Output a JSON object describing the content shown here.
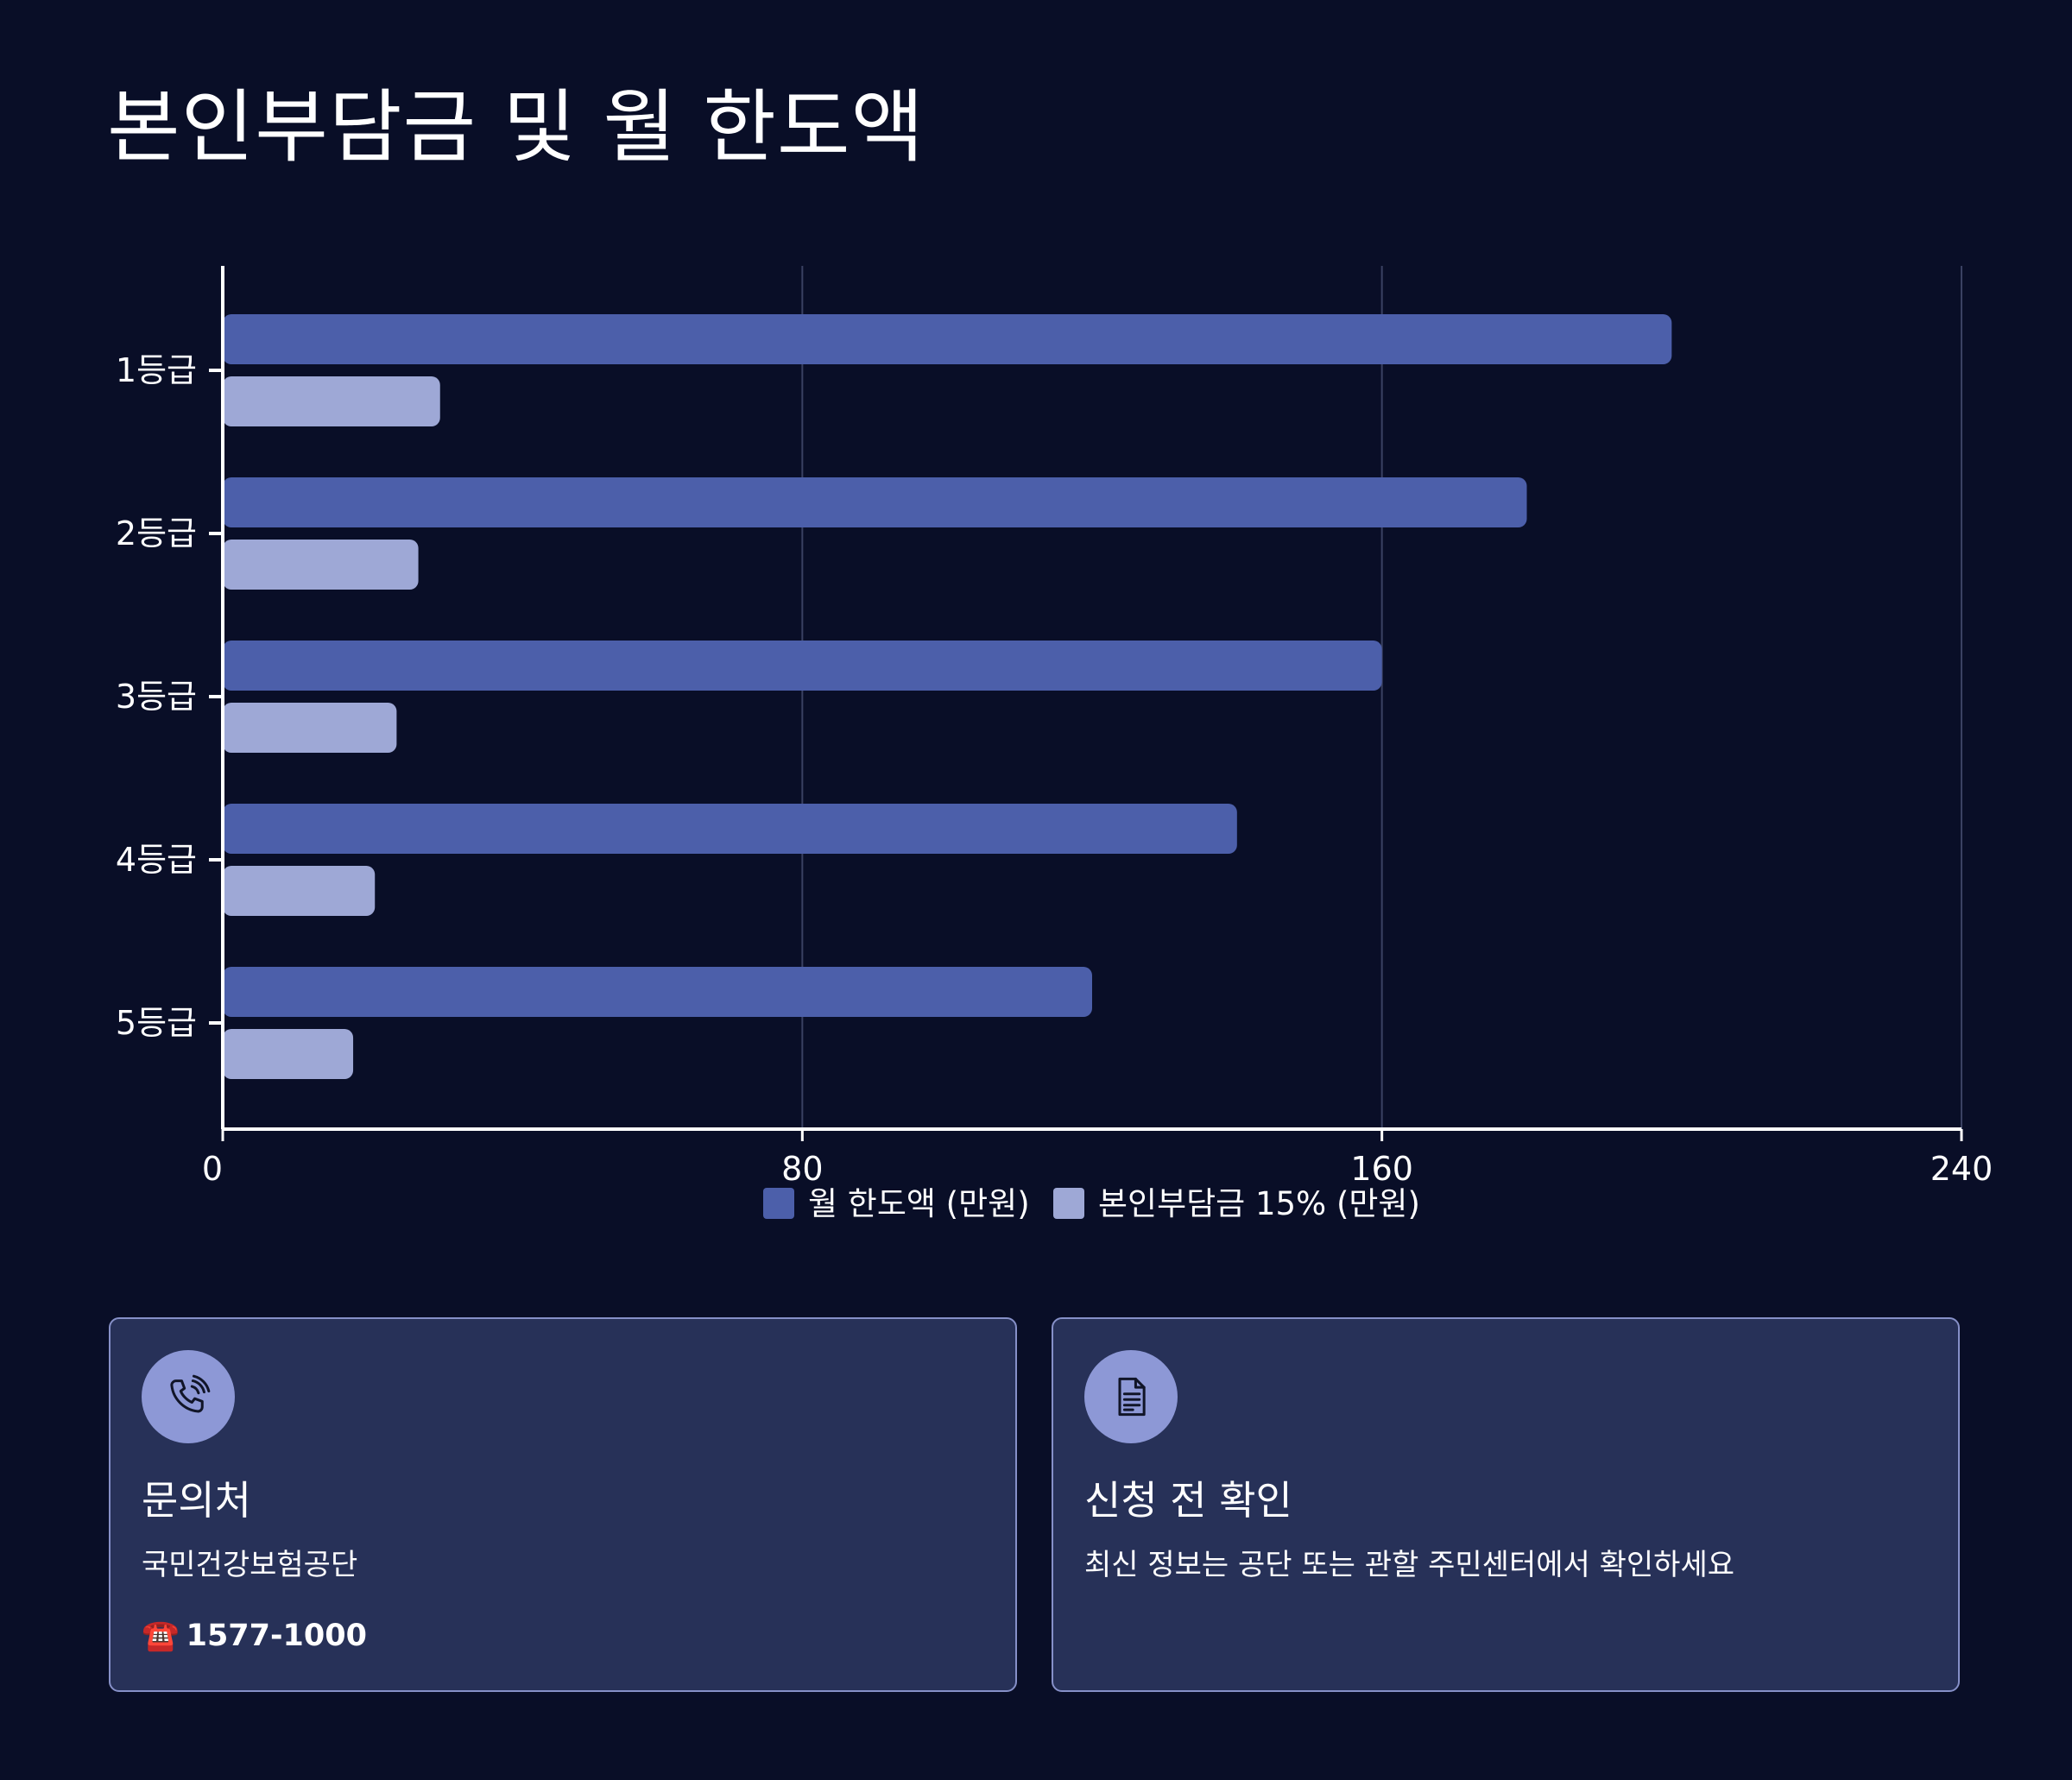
{
  "title": "본인부담금 및 월 한도액",
  "chart_data": {
    "type": "bar",
    "orientation": "horizontal",
    "categories": [
      "1등급",
      "2등급",
      "3등급",
      "4등급",
      "5등급"
    ],
    "series": [
      {
        "name": "월 한도액 (만원)",
        "values": [
          200,
          180,
          160,
          140,
          120
        ],
        "color": "#4c5faa"
      },
      {
        "name": "본인부담금 15% (만원)",
        "values": [
          30,
          27,
          24,
          21,
          18
        ],
        "color": "#9ea8d6"
      }
    ],
    "xlim": [
      0,
      240
    ],
    "xticks": [
      "0",
      "80",
      "160",
      "240"
    ],
    "grid": true,
    "legend_position": "bottom"
  },
  "cards": [
    {
      "icon": "phone-icon",
      "title": "문의처",
      "text": "국민건강보험공단",
      "phone_emoji": "☎️",
      "phone": "1577-1000"
    },
    {
      "icon": "document-icon",
      "title": "신청 전 확인",
      "text": "최신 정보는 공단 또는 관할 주민센터에서 확인하세요"
    }
  ]
}
